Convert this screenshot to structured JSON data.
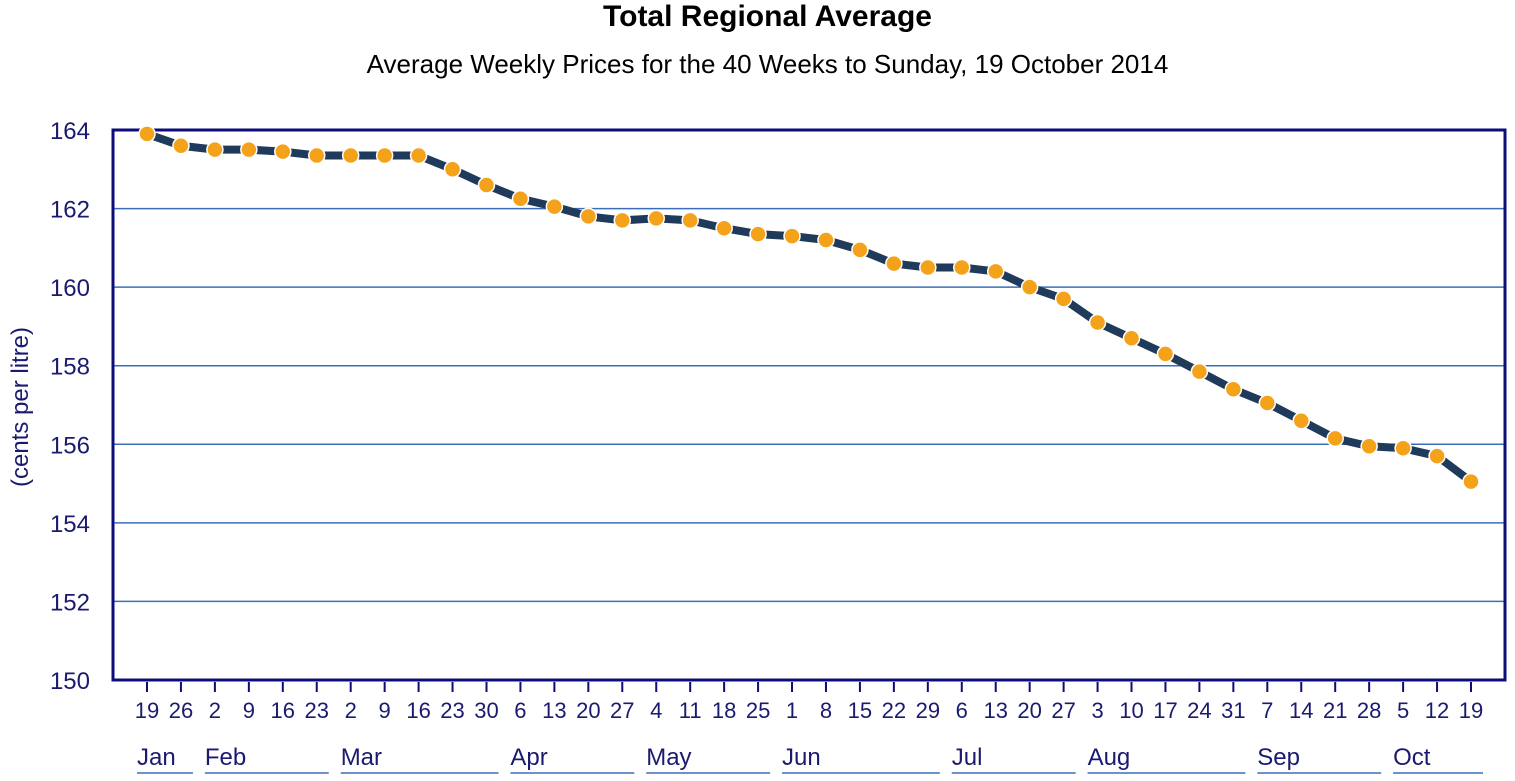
{
  "chart_data": {
    "type": "line",
    "title": "Total Regional Average",
    "subtitle": "Average Weekly Prices for the 40 Weeks to Sunday, 19 October 2014",
    "xlabel": "",
    "ylabel": "(cents per litre)",
    "ylim": [
      150,
      164
    ],
    "yticks": [
      "150",
      "152",
      "154",
      "156",
      "158",
      "160",
      "162",
      "164"
    ],
    "grid": true,
    "legend": "none",
    "colors": {
      "line": "#1f3a5a",
      "marker": "#f5a21b",
      "marker_edge": "#ffffff",
      "axis": "#0d0d7a",
      "grid": "#3a6fb8",
      "tick_text": "#1a1a6e"
    },
    "x": [
      "19",
      "26",
      "2",
      "9",
      "16",
      "23",
      "2",
      "9",
      "16",
      "23",
      "30",
      "6",
      "13",
      "20",
      "27",
      "4",
      "11",
      "18",
      "25",
      "1",
      "8",
      "15",
      "22",
      "29",
      "6",
      "13",
      "20",
      "27",
      "3",
      "10",
      "17",
      "24",
      "31",
      "7",
      "14",
      "21",
      "28",
      "5",
      "12",
      "19"
    ],
    "series": [
      {
        "name": "",
        "values": [
          163.9,
          163.6,
          163.5,
          163.5,
          163.45,
          163.35,
          163.35,
          163.35,
          163.35,
          163.0,
          162.6,
          162.25,
          162.05,
          161.8,
          161.7,
          161.75,
          161.7,
          161.5,
          161.35,
          161.3,
          161.2,
          160.95,
          160.6,
          160.5,
          160.5,
          160.4,
          160.0,
          159.7,
          159.1,
          158.7,
          158.3,
          157.85,
          157.4,
          157.05,
          156.6,
          156.15,
          155.95,
          155.9,
          155.7,
          155.05
        ]
      }
    ],
    "months": [
      {
        "label": "Jan",
        "start": 0,
        "end": 1
      },
      {
        "label": "Feb",
        "start": 2,
        "end": 5
      },
      {
        "label": "Mar",
        "start": 6,
        "end": 10
      },
      {
        "label": "Apr",
        "start": 11,
        "end": 14
      },
      {
        "label": "May",
        "start": 15,
        "end": 18
      },
      {
        "label": "Jun",
        "start": 19,
        "end": 23
      },
      {
        "label": "Jul",
        "start": 24,
        "end": 27
      },
      {
        "label": "Aug",
        "start": 28,
        "end": 32
      },
      {
        "label": "Sep",
        "start": 33,
        "end": 36
      },
      {
        "label": "Oct",
        "start": 37,
        "end": 39
      }
    ]
  }
}
